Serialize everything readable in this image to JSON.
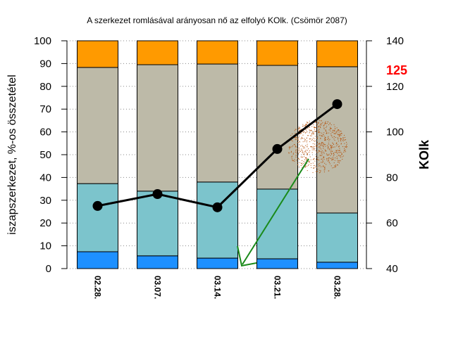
{
  "chart_data": {
    "type": "bar",
    "stacked": true,
    "title": "A szerkezet romlásával arányosan nő az elfolyó KOlk. (Csömör 2087)",
    "ylabel": "iszapszerkezet, %-os összetétel",
    "y2label": "KOlk",
    "categories": [
      "02.28.",
      "03.07.",
      "03.14.",
      "03.21.",
      "03.28."
    ],
    "ylim": [
      0,
      100
    ],
    "yticks": [
      "0",
      "10",
      "20",
      "30",
      "40",
      "50",
      "60",
      "70",
      "80",
      "90",
      "100"
    ],
    "y2lim": [
      40,
      140
    ],
    "y2ticks": [
      "40",
      "60",
      "80",
      "100",
      "120",
      "140"
    ],
    "grid": true,
    "series": [
      {
        "name": "blue",
        "color": "#1e90ff",
        "values": [
          7.4,
          5.6,
          4.6,
          4.3,
          2.8
        ]
      },
      {
        "name": "teal",
        "color": "#7cc4cc",
        "values": [
          29.9,
          28.4,
          33.4,
          30.6,
          21.6
        ]
      },
      {
        "name": "gray",
        "color": "#bdbaa8",
        "values": [
          51.0,
          55.5,
          51.8,
          54.3,
          64.2
        ]
      },
      {
        "name": "orange",
        "color": "#ff9a00",
        "values": [
          11.7,
          10.5,
          10.2,
          10.8,
          11.4
        ]
      }
    ],
    "line": {
      "name": "KOlk",
      "axis": "right",
      "color": "#000000",
      "values": [
        67.5,
        72.7,
        66.9,
        92.5,
        112.2
      ]
    },
    "annotations": {
      "value_label": "125",
      "value_label_color": "#ff0000",
      "arrow_color": "#1a8a1a",
      "scribble_color": "#b4500a"
    }
  }
}
